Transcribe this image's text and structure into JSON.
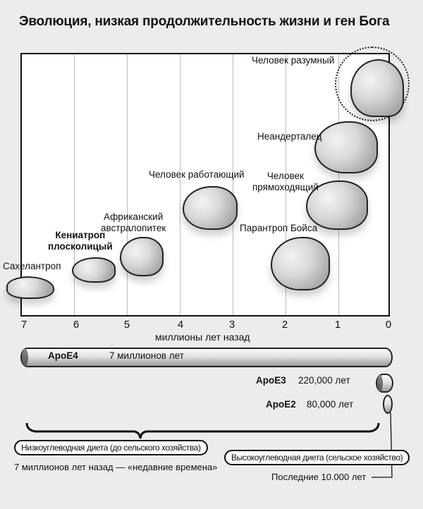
{
  "title": "Эволюция, низкая продолжительность жизни и ген Бога",
  "axis": {
    "ticks": [
      "7",
      "6",
      "5",
      "4",
      "3",
      "2",
      "1",
      "0"
    ],
    "label": "миллионы лет назад"
  },
  "species": [
    {
      "name": "Сахелантроп",
      "bold": false
    },
    {
      "name": "Кениатроп плосколицый",
      "line1": "Кениатроп",
      "line2": "плосколицый",
      "bold": true
    },
    {
      "name": "Африканский австралопитек",
      "line1": "Африканский",
      "line2": "австралопитек"
    },
    {
      "name": "Человек работающий"
    },
    {
      "name": "Парантроп Бойса"
    },
    {
      "name": "Человек прямоходящий",
      "line1": "Человек",
      "line2": "прямоходящий"
    },
    {
      "name": "Неандерталец"
    },
    {
      "name": "Человек разумный",
      "highlighted": true
    }
  ],
  "genes": [
    {
      "name": "ApoE4",
      "age": "7 миллионов лет"
    },
    {
      "name": "ApoE3",
      "age": "220,000 лет"
    },
    {
      "name": "ApoE2",
      "age": "80,000 лет"
    }
  ],
  "diet": {
    "low": "Низкоуглеводная диета (до сельского хозяйства)",
    "low_note": "7 миллионов лет назад — «недавние времена»",
    "high": "Высокоуглеводная диета (сельское хозяйство)",
    "high_note": "Последние 10.000 лет"
  }
}
